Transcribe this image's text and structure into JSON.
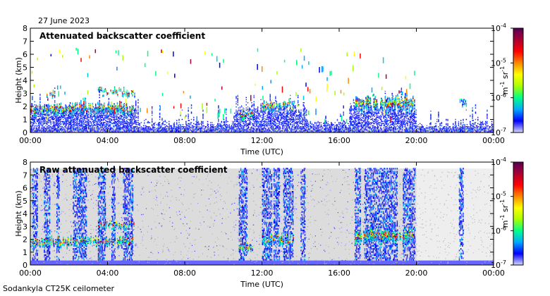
{
  "date": "27 June 2023",
  "footer": "Sodankyla CT25K ceilometer",
  "colorbar": {
    "unit_base": "m",
    "unit_exp1": "-1",
    "unit_mid": " sr",
    "unit_exp2": "-1",
    "ticks": [
      {
        "base": "10",
        "exp": "-4",
        "value": 0.0001
      },
      {
        "base": "10",
        "exp": "-5",
        "value": 1e-05
      },
      {
        "base": "10",
        "exp": "-6",
        "value": 1e-06
      },
      {
        "base": "10",
        "exp": "-7",
        "value": 1e-07
      }
    ],
    "colors": [
      "#d8d8ff",
      "#0000ff",
      "#00aaff",
      "#00ff88",
      "#aaff00",
      "#ffff00",
      "#ff8800",
      "#ff0000",
      "#aa0033",
      "#550055"
    ]
  },
  "chart_data": [
    {
      "type": "heatmap",
      "title": "Attenuated backscatter coefficient",
      "xlabel": "Time (UTC)",
      "ylabel": "Height (km)",
      "xticks": [
        "00:00",
        "04:00",
        "08:00",
        "12:00",
        "16:00",
        "20:00",
        "00:00"
      ],
      "yticks": [
        "0",
        "1",
        "2",
        "3",
        "4",
        "5",
        "6",
        "7",
        "8"
      ],
      "xlim": [
        0,
        24
      ],
      "ylim": [
        0,
        8
      ],
      "color_scale": "log",
      "clim": [
        1e-07,
        0.0001
      ],
      "features": [
        {
          "t0": 0.0,
          "t1": 5.3,
          "h0": 1.3,
          "h1": 2.3,
          "level": "high"
        },
        {
          "t0": 0.8,
          "t1": 1.2,
          "h0": 2.4,
          "h1": 3.2,
          "level": "high"
        },
        {
          "t0": 3.5,
          "t1": 5.4,
          "h0": 2.8,
          "h1": 3.4,
          "level": "high"
        },
        {
          "t0": 10.8,
          "t1": 11.5,
          "h0": 1.0,
          "h1": 1.8,
          "level": "high"
        },
        {
          "t0": 12.0,
          "t1": 13.6,
          "h0": 1.5,
          "h1": 2.5,
          "level": "high"
        },
        {
          "t0": 16.8,
          "t1": 19.8,
          "h0": 1.5,
          "h1": 3.0,
          "level": "high"
        },
        {
          "t0": 22.2,
          "t1": 22.6,
          "h0": 2.0,
          "h1": 2.6,
          "level": "medium"
        }
      ]
    },
    {
      "type": "heatmap",
      "title": "Raw attenuated backscatter coefficient",
      "xlabel": "Time (UTC)",
      "ylabel": "Height (km)",
      "xticks": [
        "00:00",
        "04:00",
        "08:00",
        "12:00",
        "16:00",
        "20:00",
        "00:00"
      ],
      "yticks": [
        "0",
        "1",
        "2",
        "3",
        "4",
        "5",
        "6",
        "7",
        "8"
      ],
      "xlim": [
        0,
        24
      ],
      "ylim": [
        0,
        8
      ],
      "color_scale": "log",
      "clim": [
        1e-07,
        0.0001
      ],
      "features": [
        {
          "t0": 0.0,
          "t1": 5.3,
          "h0": 1.3,
          "h1": 2.3,
          "level": "high"
        },
        {
          "t0": 3.5,
          "t1": 5.4,
          "h0": 2.8,
          "h1": 3.4,
          "level": "high"
        },
        {
          "t0": 10.8,
          "t1": 11.5,
          "h0": 1.0,
          "h1": 1.8,
          "level": "high"
        },
        {
          "t0": 12.0,
          "t1": 13.6,
          "h0": 1.5,
          "h1": 2.5,
          "level": "high"
        },
        {
          "t0": 16.8,
          "t1": 19.8,
          "h0": 1.5,
          "h1": 3.0,
          "level": "high"
        }
      ]
    }
  ]
}
